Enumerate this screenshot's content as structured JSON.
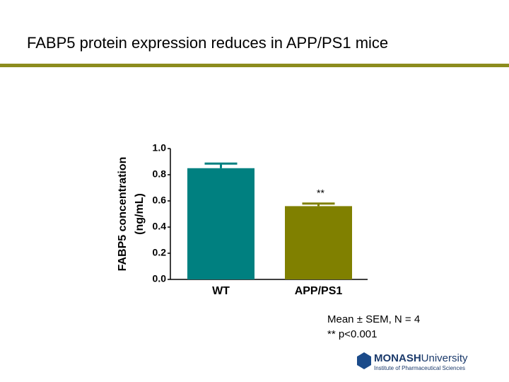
{
  "slide": {
    "title": "FABP5 protein expression reduces in APP/PS1 mice",
    "note": [
      "Mean ± SEM, N = 4",
      "** p<0.001"
    ],
    "logo": {
      "name": "MONASH",
      "suffix": "University",
      "subtitle": "Institute of Pharmaceutical Sciences"
    }
  },
  "chart_data": {
    "type": "bar",
    "ylabel": [
      "FABP5 concentration",
      "(ng/mL)"
    ],
    "categories": [
      "WT",
      "APP/PS1"
    ],
    "values": [
      0.85,
      0.56
    ],
    "errors": [
      0.035,
      0.02
    ],
    "colors": [
      "#008080",
      "#808000"
    ],
    "annotations": [
      null,
      "**"
    ],
    "ylim": [
      0,
      1.0
    ],
    "yticks": [
      {
        "value": 0,
        "label": "0.0"
      },
      {
        "value": 0.2,
        "label": "0.2"
      },
      {
        "value": 0.4,
        "label": "0.4"
      },
      {
        "value": 0.6,
        "label": "0.6"
      },
      {
        "value": 0.8,
        "label": "0.8"
      },
      {
        "value": 1.0,
        "label": "1.0"
      }
    ],
    "grid": false
  }
}
